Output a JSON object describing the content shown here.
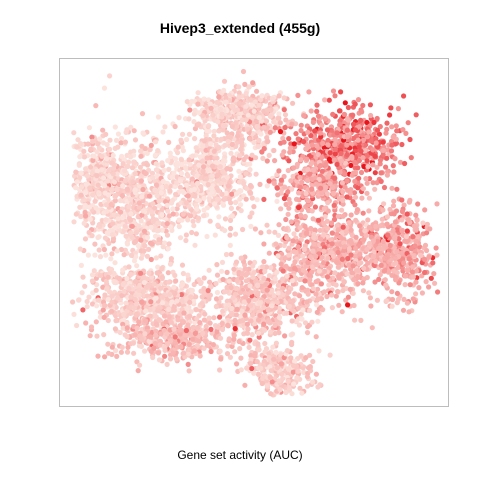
{
  "chart_data": {
    "type": "scatter",
    "title": "Hivep3_extended (455g)",
    "xlabel": "Gene set activity (AUC)",
    "ylabel": "",
    "axes": "none (tSNE embedding, no ticks)",
    "grid": false,
    "legend": "none",
    "n_points_approx": 6000,
    "color_scale": {
      "low": "#FCE3DD",
      "mid": "#F7A8A6",
      "high": "#E8141C",
      "meaning": "Gene set activity (AUC)"
    },
    "regions": [
      {
        "label": "upper-right cluster (high activity)",
        "activity": "high"
      },
      {
        "label": "right cluster (moderate-high activity)",
        "activity": "moderate-high"
      },
      {
        "label": "lower-left band (moderate activity)",
        "activity": "moderate"
      },
      {
        "label": "left / central mass (low activity)",
        "activity": "low"
      }
    ]
  }
}
